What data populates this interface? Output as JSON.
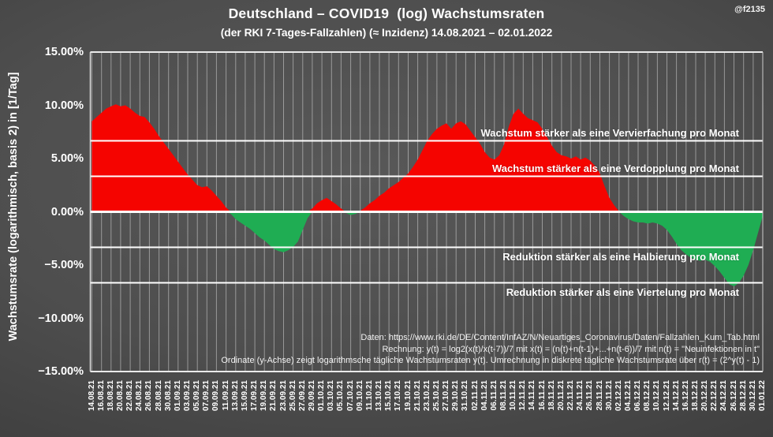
{
  "watermark": "@f2135",
  "colors": {
    "positive": "#f50400",
    "negative": "#1fad53",
    "reference_line": "#ffffff",
    "grid": "rgba(255,255,255,0.42)",
    "text": "#ffffff"
  },
  "chart_data": {
    "type": "area",
    "title": "Deutschland – COVID19  (log) Wachstumsraten",
    "subtitle": "(der RKI 7-Tages-Fallzahlen) (≈ Inzidenz) 14.08.2021 – 02.01.2022",
    "ylabel": "Wachstumsrate (logarithmisch, basis 2) in [1/Tag]",
    "ylim": [
      -15,
      15
    ],
    "grid": "vertical-only",
    "y_ticks": [
      "15.00%",
      "10.00%",
      "5.00%",
      "0.00%",
      "−5.00%",
      "−10.00%",
      "−15.00%"
    ],
    "y_tick_values": [
      15,
      10,
      5,
      0,
      -5,
      -10,
      -15
    ],
    "x_tick_step_days": 2,
    "x_tick_labels": [
      "14.08.21",
      "16.08.21",
      "18.08.21",
      "20.08.21",
      "22.08.21",
      "24.08.21",
      "26.08.21",
      "28.08.21",
      "30.08.21",
      "01.09.21",
      "03.09.21",
      "05.09.21",
      "07.09.21",
      "09.09.21",
      "11.09.21",
      "13.09.21",
      "15.09.21",
      "17.09.21",
      "19.09.21",
      "21.09.21",
      "23.09.21",
      "25.09.21",
      "27.09.21",
      "29.09.21",
      "01.10.21",
      "03.10.21",
      "05.10.21",
      "07.10.21",
      "09.10.21",
      "11.10.21",
      "13.10.21",
      "15.10.21",
      "17.10.21",
      "19.10.21",
      "21.10.21",
      "23.10.21",
      "25.10.21",
      "27.10.21",
      "29.10.21",
      "31.10.21",
      "02.11.21",
      "04.11.21",
      "06.11.21",
      "08.11.21",
      "10.11.21",
      "12.11.21",
      "14.11.21",
      "16.11.21",
      "18.11.21",
      "20.11.21",
      "22.11.21",
      "24.11.21",
      "26.11.21",
      "28.11.21",
      "30.11.21",
      "02.12.21",
      "04.12.21",
      "06.12.21",
      "08.12.21",
      "10.12.21",
      "12.12.21",
      "14.12.21",
      "16.12.21",
      "18.12.21",
      "20.12.21",
      "22.12.21",
      "24.12.21",
      "26.12.21",
      "28.12.21",
      "30.12.21",
      "01.01.22"
    ],
    "series_start_date": "14.08.2021",
    "values_pct_per_day": [
      8.5,
      8.9,
      9.3,
      9.7,
      9.9,
      10.1,
      9.9,
      10.0,
      9.7,
      9.3,
      9.0,
      8.9,
      8.4,
      7.8,
      7.1,
      6.5,
      5.9,
      5.3,
      4.7,
      4.1,
      3.5,
      3.0,
      2.5,
      2.3,
      2.4,
      2.0,
      1.5,
      1.0,
      0.4,
      -0.2,
      -0.7,
      -1.0,
      -1.3,
      -1.6,
      -2.0,
      -2.4,
      -2.7,
      -3.1,
      -3.5,
      -3.7,
      -3.8,
      -3.6,
      -3.3,
      -2.8,
      -1.7,
      -0.6,
      0.3,
      0.8,
      1.1,
      1.3,
      1.0,
      0.7,
      0.3,
      -0.1,
      -0.3,
      -0.2,
      0.1,
      0.4,
      0.8,
      1.1,
      1.5,
      1.8,
      2.2,
      2.5,
      2.8,
      3.2,
      3.6,
      4.2,
      4.9,
      5.8,
      6.7,
      7.3,
      7.8,
      8.1,
      8.3,
      7.8,
      8.3,
      8.5,
      8.2,
      7.6,
      7.0,
      6.4,
      5.6,
      5.1,
      4.9,
      5.3,
      6.3,
      8.0,
      9.2,
      9.7,
      9.2,
      8.8,
      8.6,
      8.4,
      7.8,
      7.0,
      6.2,
      5.6,
      5.3,
      5.2,
      5.0,
      5.2,
      4.9,
      5.1,
      4.8,
      4.3,
      3.6,
      2.4,
      1.3,
      0.6,
      0.05,
      -0.4,
      -0.7,
      -0.9,
      -1.0,
      -1.0,
      -1.1,
      -1.0,
      -1.1,
      -1.3,
      -1.7,
      -2.3,
      -3.0,
      -3.6,
      -4.0,
      -4.3,
      -4.5,
      -4.6,
      -4.5,
      -4.7,
      -5.1,
      -5.6,
      -6.2,
      -6.8,
      -7.0,
      -6.7,
      -6.0,
      -5.0,
      -3.6,
      -2.0,
      -0.4
    ],
    "reference_lines": [
      {
        "value": 6.667,
        "label": "Wachstum stärker als eine Vervierfachung pro Monat",
        "label_side": "above"
      },
      {
        "value": 3.333,
        "label": "Wachstum stärker als eine Verdopplung pro Monat",
        "label_side": "above"
      },
      {
        "value": -3.333,
        "label": "Reduktion stärker als eine Halbierung pro Monat",
        "label_side": "below"
      },
      {
        "value": -6.667,
        "label": "Reduktion stärker als eine Viertelung pro Monat",
        "label_side": "below"
      }
    ],
    "source_lines": [
      "Daten: https://www.rki.de/DE/Content/InfAZ/N/Neuartiges_Coronavirus/Daten/Fallzahlen_Kum_Tab.html",
      "Rechnung: y(t) = log2(x(t)/x(t-7))/7 mit x(t) = (n(t)+n(t-1)+...+n(t-6))/7 mit n(t) = \"Neuinfektionen in t\"",
      "Ordinate (y-Achse) zeigt logarithmsche tägliche Wachstumsraten y(t). Umrechnung in diskrete tägliche Wachstumsrate über r(t) = (2^y(t) - 1)"
    ]
  }
}
